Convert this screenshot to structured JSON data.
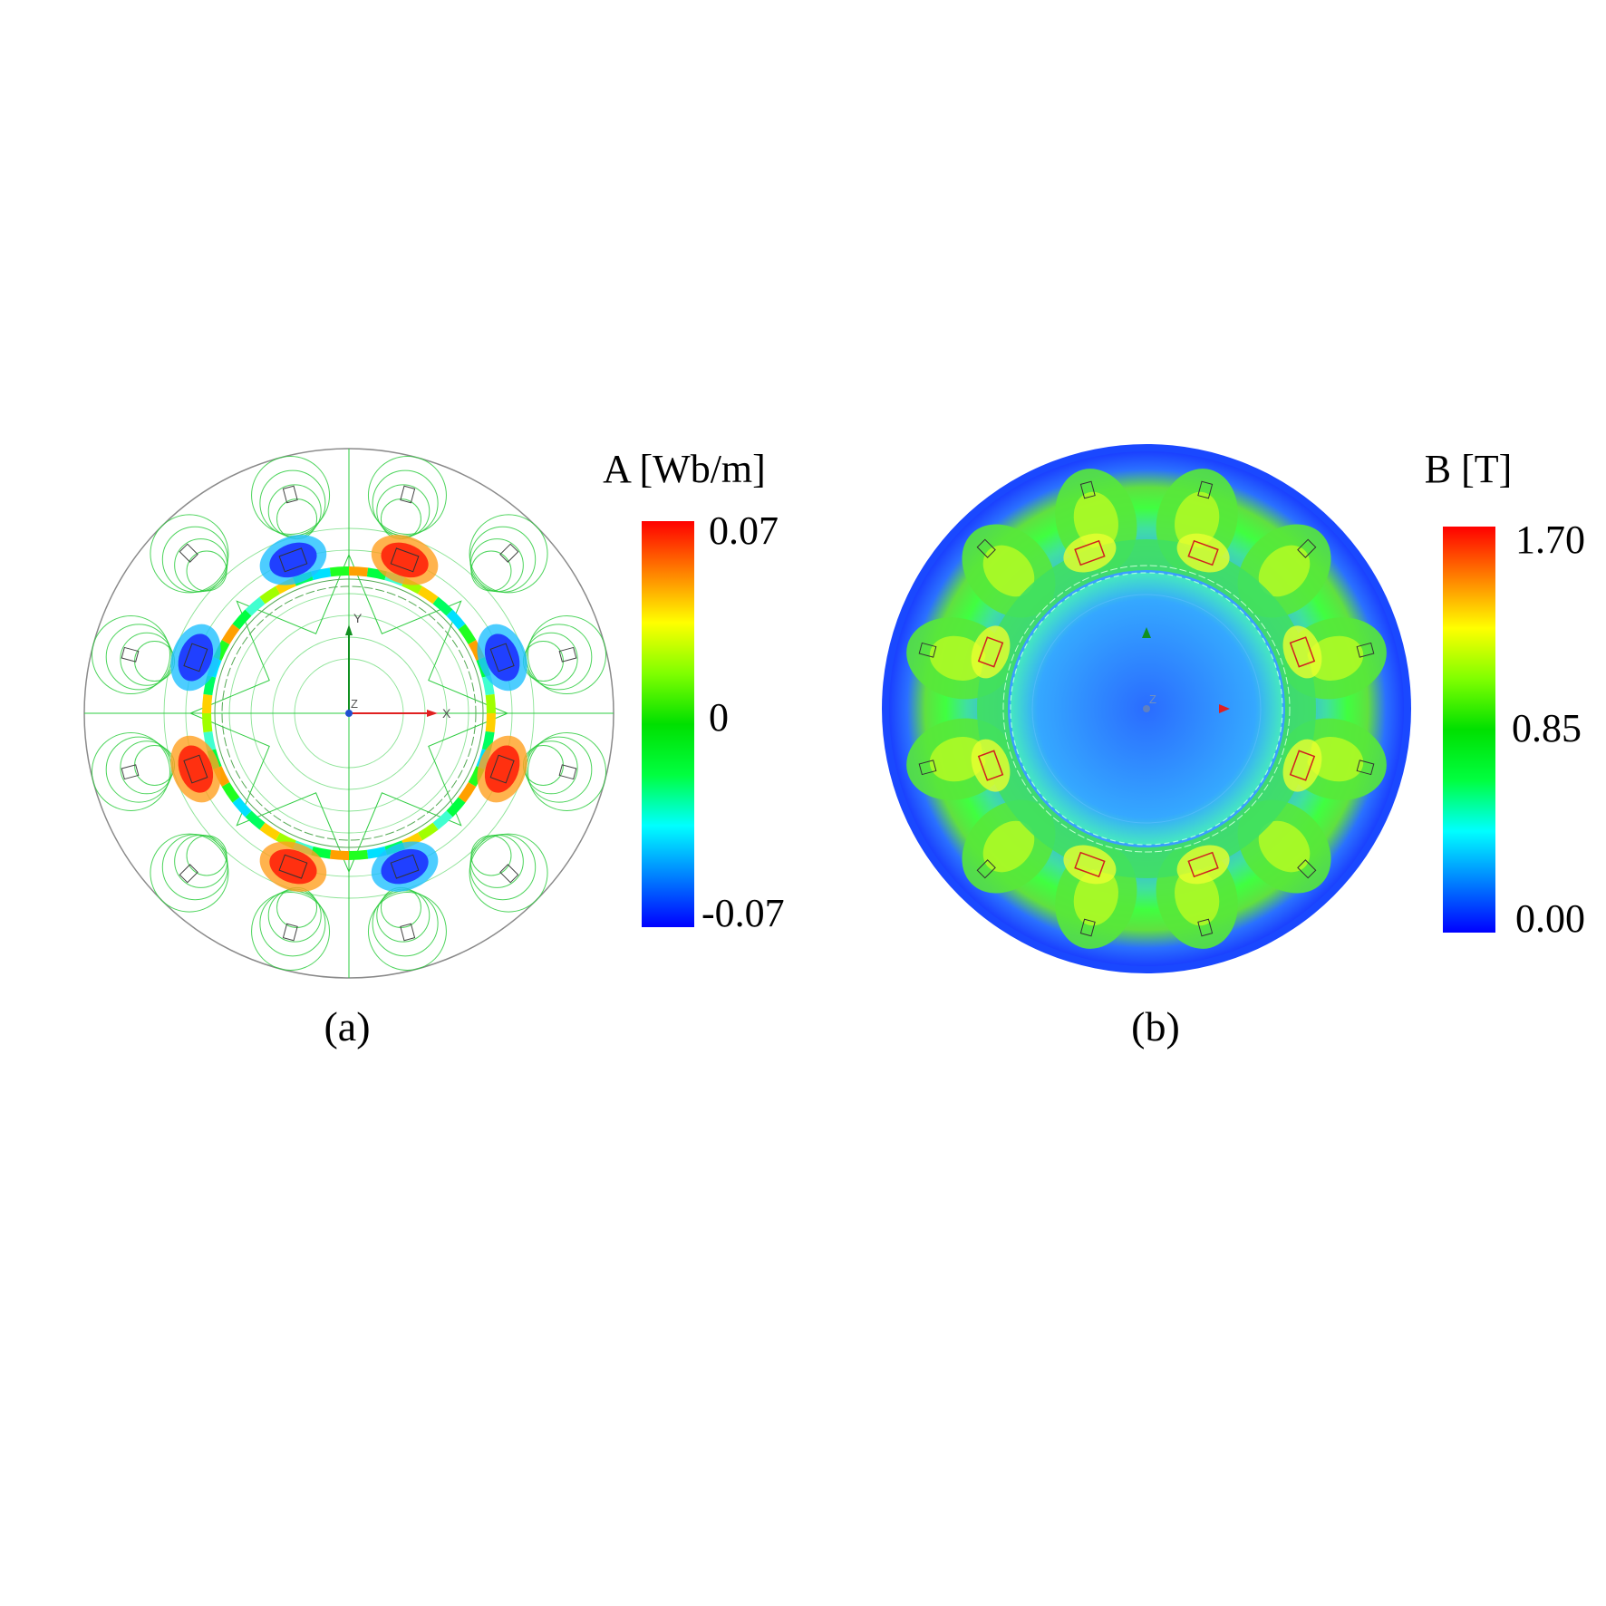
{
  "panels": [
    {
      "id": "a",
      "caption": "(a)",
      "quantity_label": "A [Wb/m]",
      "colorbar": {
        "max_label": "0.07",
        "mid_label": "0",
        "min_label": "-0.07"
      },
      "axis_labels": {
        "x": "X",
        "y": "Y",
        "z": "Z"
      }
    },
    {
      "id": "b",
      "caption": "(b)",
      "quantity_label": "B [T]",
      "colorbar": {
        "max_label": "1.70",
        "mid_label": "0.85",
        "min_label": "0.00"
      },
      "axis_labels": {
        "z": "Z"
      }
    }
  ],
  "colors": {
    "colormap": [
      "#0000ff",
      "#0080ff",
      "#00ffff",
      "#00ff40",
      "#00e000",
      "#80ff00",
      "#ffff00",
      "#ff8000",
      "#ff0000"
    ],
    "contour_green": "#2ecc40",
    "field_blue": "#1a4cff",
    "field_green": "#33e033",
    "axis_red": "#e02020",
    "axis_green": "#109020",
    "axis_blue": "#2050d0"
  }
}
